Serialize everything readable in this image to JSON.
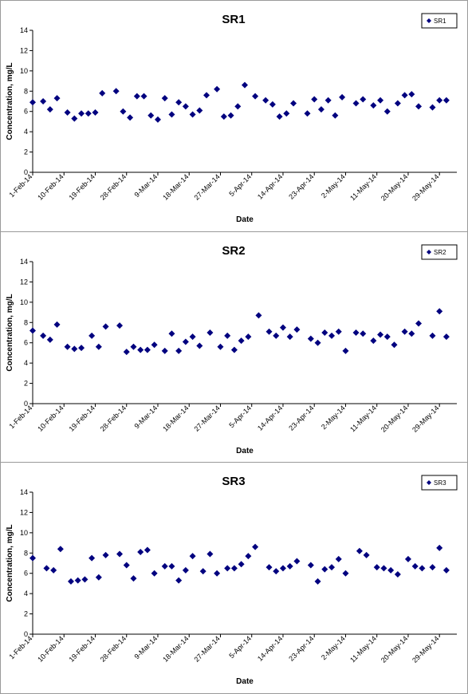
{
  "chart_data": [
    {
      "type": "scatter",
      "title": "SR1",
      "xlabel": "Date",
      "ylabel": "Concentration, mg/L",
      "ylim": [
        0,
        14
      ],
      "yticks": [
        0,
        2,
        4,
        6,
        8,
        10,
        12,
        14
      ],
      "xlim": [
        "2014-02-01",
        "2014-06-03"
      ],
      "xticks": [
        "1-Feb-14",
        "10-Feb-14",
        "19-Feb-14",
        "28-Feb-14",
        "9-Mar-14",
        "18-Mar-14",
        "27-Mar-14",
        "5-Apr-14",
        "14-Apr-14",
        "23-Apr-14",
        "2-May-14",
        "11-May-14",
        "20-May-14",
        "29-May-14"
      ],
      "grid": false,
      "legend": "top-right",
      "color": "#00007f",
      "series": [
        {
          "name": "SR1",
          "x": [
            "2014-02-01",
            "2014-02-04",
            "2014-02-06",
            "2014-02-08",
            "2014-02-11",
            "2014-02-13",
            "2014-02-15",
            "2014-02-17",
            "2014-02-19",
            "2014-02-21",
            "2014-02-25",
            "2014-02-27",
            "2014-03-01",
            "2014-03-03",
            "2014-03-05",
            "2014-03-07",
            "2014-03-09",
            "2014-03-11",
            "2014-03-13",
            "2014-03-15",
            "2014-03-17",
            "2014-03-19",
            "2014-03-21",
            "2014-03-23",
            "2014-03-26",
            "2014-03-28",
            "2014-03-30",
            "2014-04-01",
            "2014-04-03",
            "2014-04-06",
            "2014-04-09",
            "2014-04-11",
            "2014-04-13",
            "2014-04-15",
            "2014-04-17",
            "2014-04-21",
            "2014-04-23",
            "2014-04-25",
            "2014-04-27",
            "2014-04-29",
            "2014-05-01",
            "2014-05-05",
            "2014-05-07",
            "2014-05-10",
            "2014-05-12",
            "2014-05-14",
            "2014-05-17",
            "2014-05-19",
            "2014-05-21",
            "2014-05-23",
            "2014-05-27",
            "2014-05-29",
            "2014-05-31"
          ],
          "y": [
            6.9,
            7.0,
            6.2,
            7.3,
            5.9,
            5.3,
            5.8,
            5.8,
            5.9,
            7.8,
            8.0,
            6.0,
            5.4,
            7.5,
            7.5,
            5.6,
            5.2,
            7.3,
            5.7,
            6.9,
            6.5,
            5.7,
            6.1,
            7.6,
            8.2,
            5.5,
            5.6,
            6.5,
            8.6,
            7.5,
            7.1,
            6.7,
            5.5,
            5.8,
            6.8,
            5.8,
            7.2,
            6.2,
            7.1,
            5.6,
            7.4,
            6.8,
            7.2,
            6.6,
            7.1,
            6.0,
            6.8,
            7.6,
            7.7,
            6.5,
            6.4,
            7.1,
            7.1
          ]
        }
      ]
    },
    {
      "type": "scatter",
      "title": "SR2",
      "xlabel": "Date",
      "ylabel": "Concentration, mg/L",
      "ylim": [
        0,
        14
      ],
      "yticks": [
        0,
        2,
        4,
        6,
        8,
        10,
        12,
        14
      ],
      "xlim": [
        "2014-02-01",
        "2014-06-03"
      ],
      "xticks": [
        "1-Feb-14",
        "10-Feb-14",
        "19-Feb-14",
        "28-Feb-14",
        "9-Mar-14",
        "18-Mar-14",
        "27-Mar-14",
        "5-Apr-14",
        "14-Apr-14",
        "23-Apr-14",
        "2-May-14",
        "11-May-14",
        "20-May-14",
        "29-May-14"
      ],
      "grid": false,
      "legend": "top-right",
      "color": "#00007f",
      "series": [
        {
          "name": "SR2",
          "x": [
            "2014-02-01",
            "2014-02-04",
            "2014-02-06",
            "2014-02-08",
            "2014-02-11",
            "2014-02-13",
            "2014-02-15",
            "2014-02-18",
            "2014-02-20",
            "2014-02-22",
            "2014-02-26",
            "2014-02-28",
            "2014-03-02",
            "2014-03-04",
            "2014-03-06",
            "2014-03-08",
            "2014-03-11",
            "2014-03-13",
            "2014-03-15",
            "2014-03-17",
            "2014-03-19",
            "2014-03-21",
            "2014-03-24",
            "2014-03-27",
            "2014-03-29",
            "2014-03-31",
            "2014-04-02",
            "2014-04-04",
            "2014-04-07",
            "2014-04-10",
            "2014-04-12",
            "2014-04-14",
            "2014-04-16",
            "2014-04-18",
            "2014-04-22",
            "2014-04-24",
            "2014-04-26",
            "2014-04-28",
            "2014-04-30",
            "2014-05-02",
            "2014-05-05",
            "2014-05-07",
            "2014-05-10",
            "2014-05-12",
            "2014-05-14",
            "2014-05-16",
            "2014-05-19",
            "2014-05-21",
            "2014-05-23",
            "2014-05-27",
            "2014-05-29",
            "2014-05-31"
          ],
          "y": [
            7.2,
            6.7,
            6.3,
            7.8,
            5.6,
            5.4,
            5.5,
            6.7,
            5.6,
            7.6,
            7.7,
            5.1,
            5.6,
            5.3,
            5.3,
            5.8,
            5.2,
            6.9,
            5.2,
            6.1,
            6.6,
            5.7,
            7.0,
            5.6,
            6.7,
            5.3,
            6.2,
            6.6,
            8.7,
            7.1,
            6.7,
            7.5,
            6.6,
            7.3,
            6.4,
            6.0,
            7.0,
            6.7,
            7.1,
            5.2,
            7.0,
            6.9,
            6.2,
            6.8,
            6.6,
            5.8,
            7.1,
            6.9,
            7.9,
            6.7,
            9.1,
            6.6
          ]
        }
      ]
    },
    {
      "type": "scatter",
      "title": "SR3",
      "xlabel": "Date",
      "ylabel": "Concentration, mg/L",
      "ylim": [
        0,
        14
      ],
      "yticks": [
        0,
        2,
        4,
        6,
        8,
        10,
        12,
        14
      ],
      "xlim": [
        "2014-02-01",
        "2014-06-03"
      ],
      "xticks": [
        "1-Feb-14",
        "10-Feb-14",
        "19-Feb-14",
        "28-Feb-14",
        "9-Mar-14",
        "18-Mar-14",
        "27-Mar-14",
        "5-Apr-14",
        "14-Apr-14",
        "23-Apr-14",
        "2-May-14",
        "11-May-14",
        "20-May-14",
        "29-May-14"
      ],
      "grid": false,
      "legend": "top-right",
      "color": "#00007f",
      "series": [
        {
          "name": "SR3",
          "x": [
            "2014-02-01",
            "2014-02-05",
            "2014-02-07",
            "2014-02-09",
            "2014-02-12",
            "2014-02-14",
            "2014-02-16",
            "2014-02-18",
            "2014-02-20",
            "2014-02-22",
            "2014-02-26",
            "2014-02-28",
            "2014-03-02",
            "2014-03-04",
            "2014-03-06",
            "2014-03-08",
            "2014-03-11",
            "2014-03-13",
            "2014-03-15",
            "2014-03-17",
            "2014-03-19",
            "2014-03-22",
            "2014-03-24",
            "2014-03-26",
            "2014-03-29",
            "2014-03-31",
            "2014-04-02",
            "2014-04-04",
            "2014-04-06",
            "2014-04-10",
            "2014-04-12",
            "2014-04-14",
            "2014-04-16",
            "2014-04-18",
            "2014-04-22",
            "2014-04-24",
            "2014-04-26",
            "2014-04-28",
            "2014-04-30",
            "2014-05-02",
            "2014-05-06",
            "2014-05-08",
            "2014-05-11",
            "2014-05-13",
            "2014-05-15",
            "2014-05-17",
            "2014-05-20",
            "2014-05-22",
            "2014-05-24",
            "2014-05-27",
            "2014-05-29",
            "2014-05-31"
          ],
          "y": [
            7.5,
            6.5,
            6.3,
            8.4,
            5.2,
            5.3,
            5.4,
            7.5,
            5.6,
            7.8,
            7.9,
            6.8,
            5.5,
            8.1,
            8.3,
            6.0,
            6.7,
            6.7,
            5.3,
            6.3,
            7.7,
            6.2,
            7.9,
            6.0,
            6.5,
            6.5,
            6.9,
            7.7,
            8.6,
            6.6,
            6.2,
            6.5,
            6.7,
            7.2,
            6.8,
            5.2,
            6.4,
            6.6,
            7.4,
            6.0,
            8.2,
            7.8,
            6.6,
            6.5,
            6.3,
            5.9,
            7.4,
            6.7,
            6.5,
            6.6,
            8.5,
            6.3
          ]
        }
      ]
    }
  ]
}
